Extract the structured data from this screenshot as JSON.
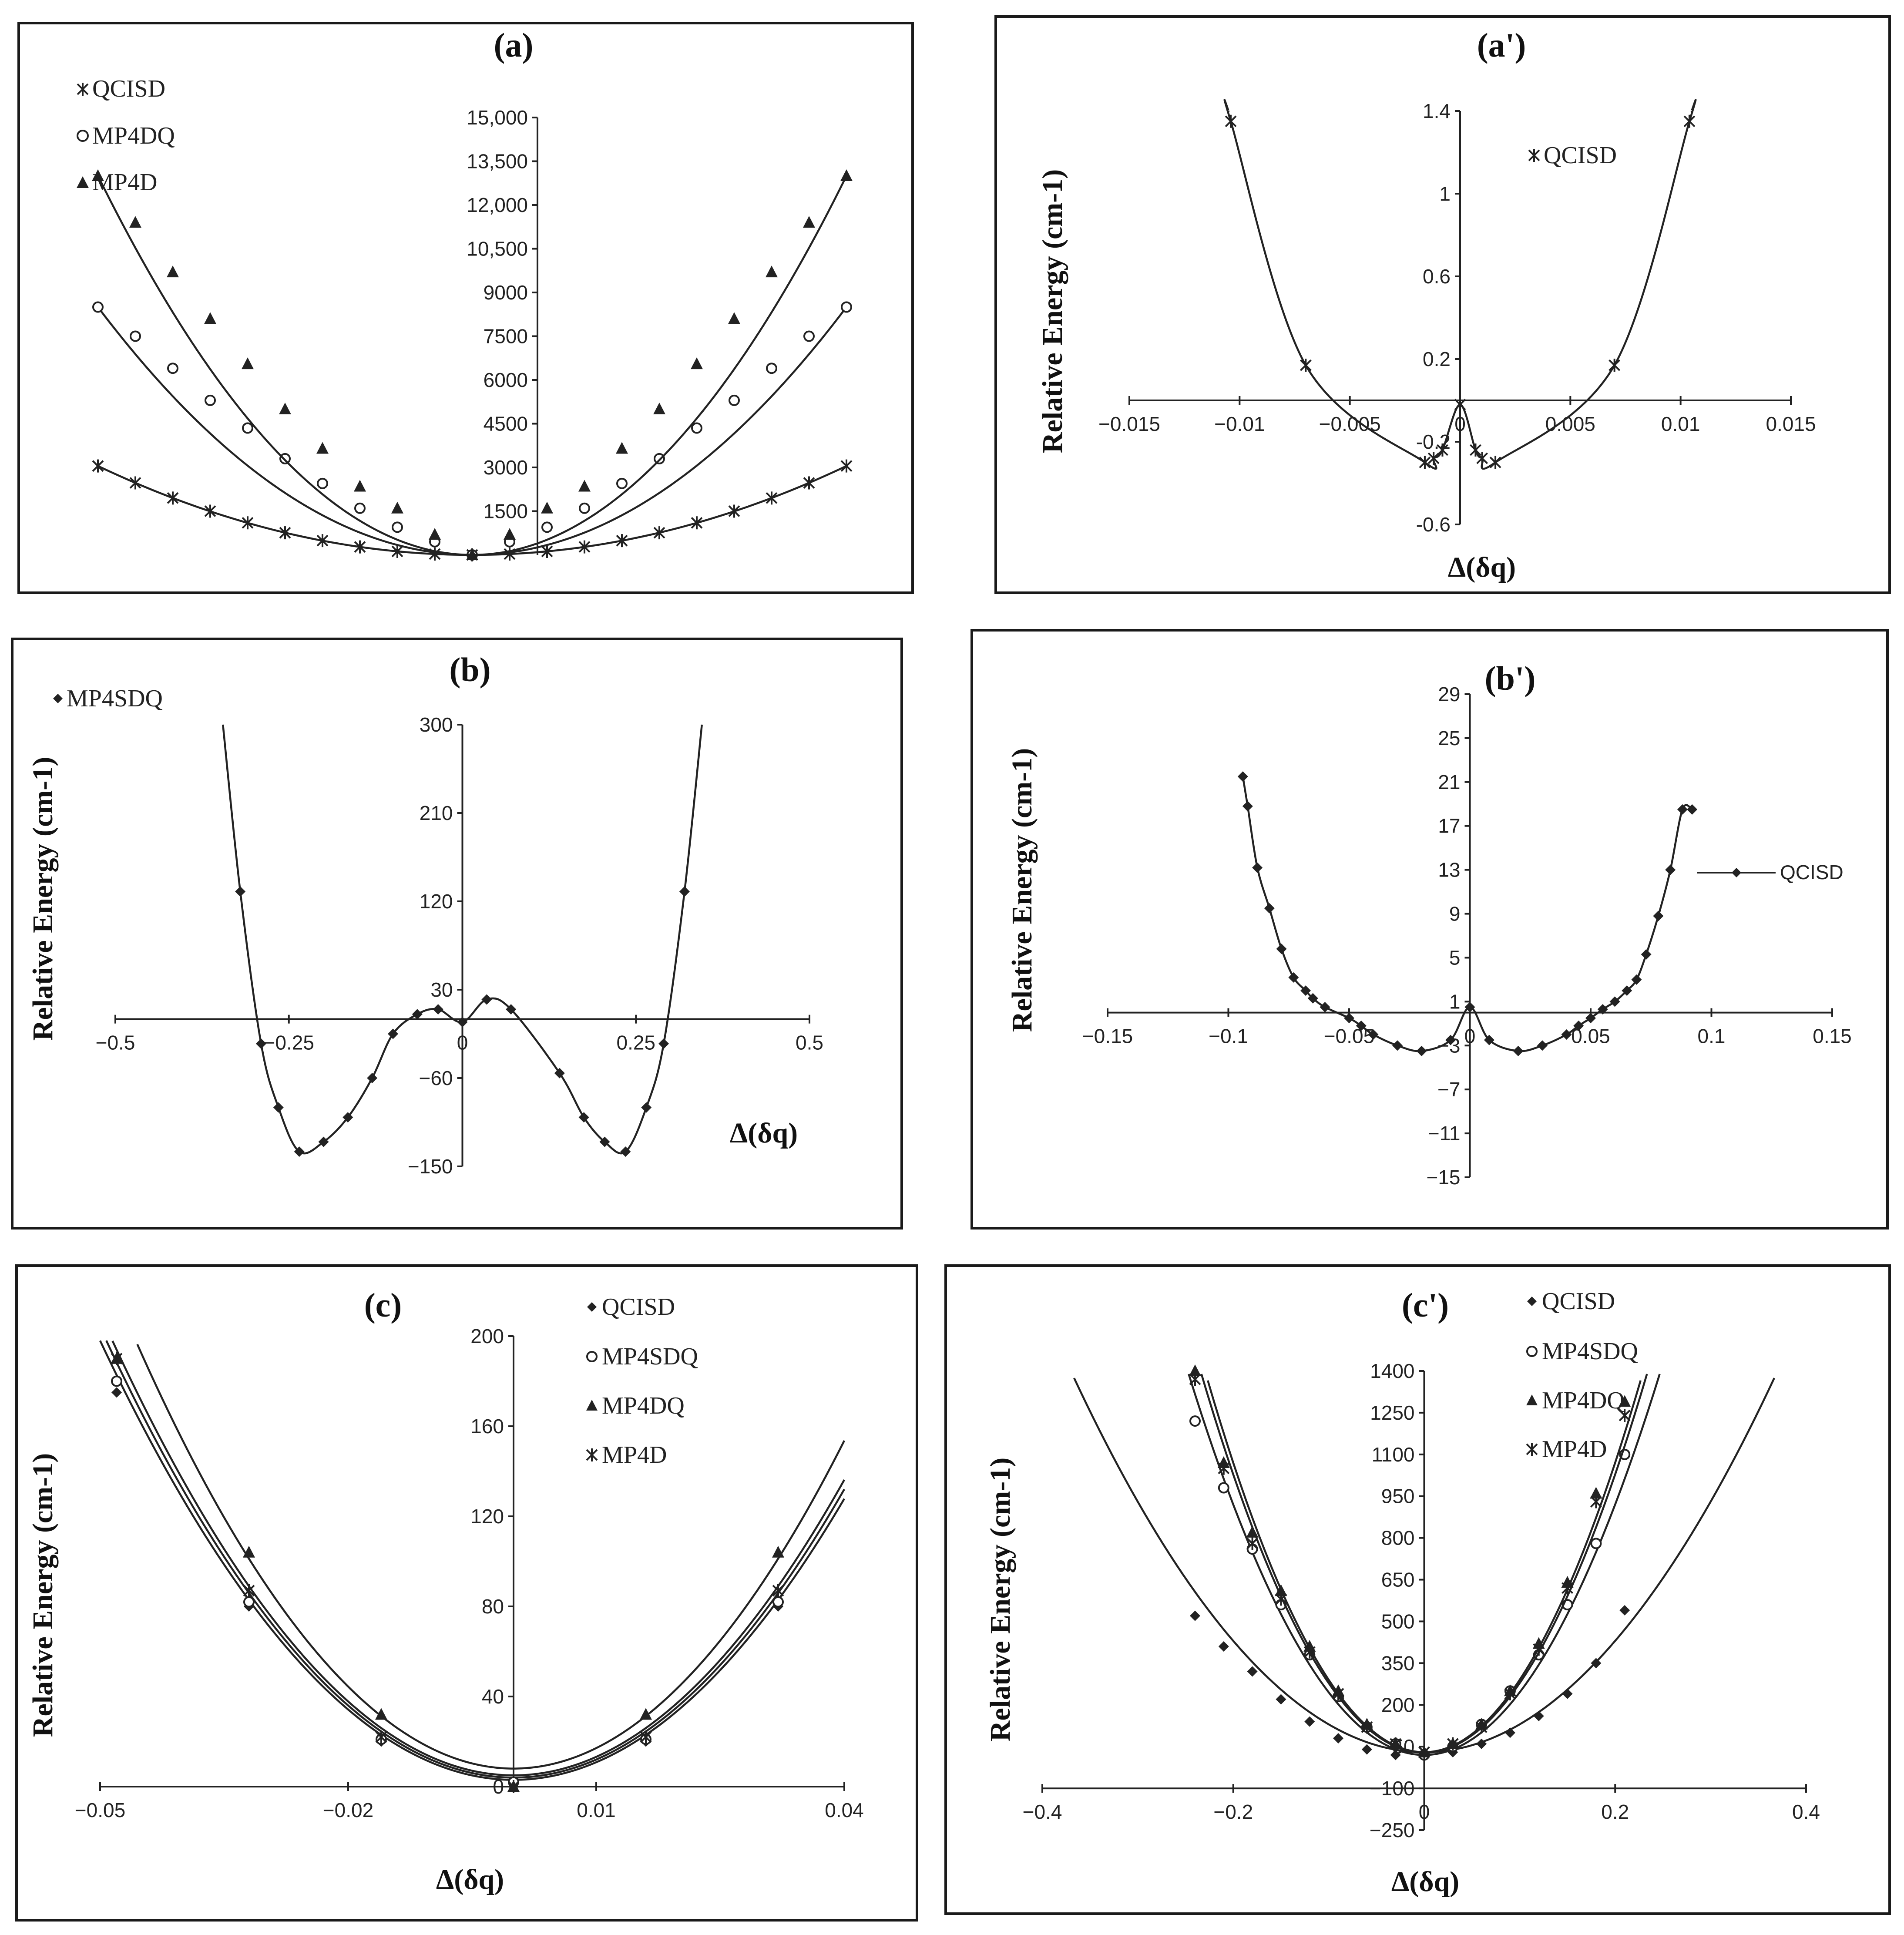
{
  "chart_data": [
    {
      "id": "a",
      "type": "line",
      "title": "(a)",
      "xlabel": "",
      "ylabel": "",
      "xlim": [
        -0.5,
        0.5
      ],
      "ylim": [
        0,
        15000
      ],
      "xticks": [],
      "yticks": [
        1500,
        3000,
        4500,
        6000,
        7500,
        9000,
        10500,
        12000,
        13500,
        15000
      ],
      "ytick_labels": [
        "1500",
        "3000",
        "4500",
        "6000",
        "7500",
        "9000",
        "10,500",
        "12,000",
        "13,500",
        "15,000"
      ],
      "series": [
        {
          "name": "QCISD",
          "marker": "star",
          "a": 12200,
          "b": 0,
          "x": [
            -0.5,
            -0.45,
            -0.4,
            -0.35,
            -0.3,
            -0.25,
            -0.2,
            -0.15,
            -0.1,
            -0.05,
            0,
            0.05,
            0.1,
            0.15,
            0.2,
            0.25,
            0.3,
            0.35,
            0.4,
            0.45,
            0.5
          ],
          "y": [
            3050,
            2470,
            1950,
            1500,
            1100,
            760,
            490,
            275,
            120,
            30,
            0,
            30,
            120,
            275,
            490,
            760,
            1100,
            1500,
            1950,
            2470,
            3050
          ]
        },
        {
          "name": "MP4DQ",
          "marker": "circle",
          "a": 34000,
          "b": 0,
          "x": [
            -0.5,
            -0.45,
            -0.4,
            -0.35,
            -0.3,
            -0.25,
            -0.2,
            -0.15,
            -0.1,
            -0.05,
            0,
            0.05,
            0.1,
            0.15,
            0.2,
            0.25,
            0.3,
            0.35,
            0.4,
            0.45,
            0.5
          ],
          "y": [
            8500,
            7500,
            6400,
            5300,
            4350,
            3300,
            2450,
            1600,
            950,
            450,
            0,
            450,
            950,
            1600,
            2450,
            3300,
            4350,
            5300,
            6400,
            7500,
            8500
          ]
        },
        {
          "name": "MP4D",
          "marker": "triangle",
          "a": 52000,
          "b": 0,
          "x": [
            -0.5,
            -0.45,
            -0.4,
            -0.35,
            -0.3,
            -0.25,
            -0.2,
            -0.15,
            -0.1,
            -0.05,
            0,
            0.05,
            0.1,
            0.15,
            0.2,
            0.25,
            0.3,
            0.35,
            0.4,
            0.45,
            0.5
          ],
          "y": [
            13000,
            11400,
            9700,
            8100,
            6550,
            5000,
            3650,
            2350,
            1600,
            700,
            0,
            700,
            1600,
            2350,
            3650,
            5000,
            6550,
            8100,
            9700,
            11400,
            13000
          ]
        }
      ]
    },
    {
      "id": "a_prime",
      "type": "line",
      "title": "(a')",
      "xlabel": "Δ(δq)",
      "ylabel": "Relative Energy (cm-1)",
      "xlim": [
        -0.015,
        0.015
      ],
      "ylim": [
        -0.6,
        1.4
      ],
      "xticks": [
        -0.015,
        -0.01,
        -0.005,
        0,
        0.005,
        0.01,
        0.015
      ],
      "xtick_labels": [
        "−0.015",
        "−0.01",
        "−0.005",
        "0",
        "0.005",
        "0.01",
        "0.015"
      ],
      "yticks": [
        -0.6,
        -0.2,
        0.2,
        0.6,
        1,
        1.4
      ],
      "ytick_labels": [
        "-0.6",
        "-0.2",
        "0.2",
        "0.6",
        "1",
        "1.4"
      ],
      "series": [
        {
          "name": "QCISD",
          "marker": "star",
          "curve": "wshape",
          "xrange": [
            -0.0105,
            0.0105
          ],
          "x": [
            -0.0104,
            -0.007,
            -0.0016,
            -0.0012,
            -0.0008,
            0,
            0.0007,
            0.001,
            0.0016,
            0.007,
            0.0104
          ],
          "y": [
            1.35,
            0.17,
            -0.3,
            -0.28,
            -0.24,
            -0.02,
            -0.24,
            -0.28,
            -0.3,
            0.17,
            1.35
          ]
        }
      ]
    },
    {
      "id": "b",
      "type": "line",
      "title": "(b)",
      "xlabel": "Δ(δq)",
      "ylabel": "Relative Energy (cm-1)",
      "xlim": [
        -0.5,
        0.5
      ],
      "ylim": [
        -150,
        300
      ],
      "xticks": [
        -0.5,
        -0.25,
        0,
        0.25,
        0.5
      ],
      "xtick_labels": [
        "−0.5",
        "−0.25",
        "0",
        "0.25",
        "0.5"
      ],
      "yticks": [
        -150,
        -60,
        30,
        120,
        210,
        300
      ],
      "ytick_labels": [
        "−150",
        "−60",
        "30",
        "120",
        "210",
        "300"
      ],
      "series": [
        {
          "name": "MP4SDQ",
          "marker": "diamond",
          "curve": "wshape",
          "xrange": [
            -0.345,
            0.345
          ],
          "x": [
            -0.32,
            -0.29,
            -0.265,
            -0.235,
            -0.2,
            -0.165,
            -0.13,
            -0.1,
            -0.065,
            -0.035,
            0,
            0.035,
            0.07,
            0.14,
            0.175,
            0.205,
            0.235,
            0.265,
            0.29,
            0.32
          ],
          "y": [
            130,
            -25,
            -90,
            -135,
            -125,
            -100,
            -60,
            -15,
            5,
            10,
            -3,
            20,
            10,
            -55,
            -100,
            -125,
            -135,
            -90,
            -25,
            130
          ]
        }
      ]
    },
    {
      "id": "b_prime",
      "type": "line",
      "title": "(b')",
      "xlabel": "",
      "ylabel": "Relative Energy (cm-1)",
      "xlim": [
        -0.15,
        0.15
      ],
      "ylim": [
        -15,
        29
      ],
      "xticks": [
        -0.15,
        -0.1,
        -0.05,
        0,
        0.05,
        0.1,
        0.15
      ],
      "xtick_labels": [
        "−0.15",
        "−0.1",
        "−0.05",
        "0",
        "0.05",
        "0.1",
        "0.15"
      ],
      "yticks": [
        -15,
        -11,
        -7,
        -3,
        1,
        5,
        9,
        13,
        17,
        21,
        25,
        29
      ],
      "ytick_labels": [
        "−15",
        "−11",
        "−7",
        "−3",
        "1",
        "5",
        "9",
        "13",
        "17",
        "21",
        "25",
        "29"
      ],
      "series": [
        {
          "name": "QCISD",
          "marker": "diamond",
          "curve": "connected",
          "x": [
            -0.094,
            -0.092,
            -0.088,
            -0.083,
            -0.078,
            -0.073,
            -0.068,
            -0.065,
            -0.06,
            -0.05,
            -0.045,
            -0.04,
            -0.03,
            -0.02,
            -0.008,
            0,
            0.008,
            0.02,
            0.03,
            0.04,
            0.045,
            0.05,
            0.055,
            0.06,
            0.065,
            0.069,
            0.073,
            0.078,
            0.083,
            0.088,
            0.092
          ],
          "y": [
            21.5,
            18.8,
            13.2,
            9.5,
            5.8,
            3.2,
            2.0,
            1.3,
            0.5,
            -0.5,
            -1.2,
            -2.0,
            -3.0,
            -3.5,
            -2.5,
            0.5,
            -2.5,
            -3.5,
            -3.0,
            -2.0,
            -1.2,
            -0.5,
            0.3,
            1.0,
            2.0,
            3.0,
            5.3,
            8.8,
            13.0,
            18.5,
            18.5
          ]
        }
      ]
    },
    {
      "id": "c",
      "type": "line",
      "title": "(c)",
      "xlabel": "Δ(δq)",
      "ylabel": "Relative Energy (cm-1)",
      "xlim": [
        -0.05,
        0.04
      ],
      "ylim": [
        0,
        200
      ],
      "xticks": [
        -0.05,
        -0.02,
        0.01,
        0.04
      ],
      "xtick_labels": [
        "−0.05",
        "−0.02",
        "0.01",
        "0.04"
      ],
      "yticks": [
        0,
        40,
        80,
        120,
        160,
        200
      ],
      "ytick_labels": [
        "0",
        "40",
        "80",
        "120",
        "160",
        "200"
      ],
      "series": [
        {
          "name": "QCISD",
          "marker": "diamond",
          "a": 78000,
          "b": 3,
          "x": [
            -0.048,
            -0.032,
            -0.016,
            0,
            0.016,
            0.032
          ],
          "y": [
            175,
            80,
            20,
            0,
            20,
            80
          ]
        },
        {
          "name": "MP4SDQ",
          "marker": "circle",
          "a": 80000,
          "b": 4,
          "x": [
            -0.048,
            -0.032,
            -0.016,
            0,
            0.016,
            0.032
          ],
          "y": [
            180,
            82,
            21,
            2,
            21,
            82
          ]
        },
        {
          "name": "MP4DQ",
          "marker": "triangle",
          "a": 91000,
          "b": 8,
          "x": [
            -0.048,
            -0.032,
            -0.016,
            0,
            0.016,
            0.032
          ],
          "y": [
            190,
            104,
            32,
            0,
            32,
            104
          ]
        },
        {
          "name": "MP4D",
          "marker": "star",
          "a": 82000,
          "b": 5,
          "x": [
            -0.048,
            -0.032,
            -0.016,
            0,
            0.016,
            0.032
          ],
          "y": [
            190,
            87,
            22,
            0,
            22,
            87
          ]
        }
      ]
    },
    {
      "id": "c_prime",
      "type": "line",
      "title": "(c')",
      "xlabel": "Δ(δq)",
      "ylabel": "Relative Energy (cm-1)",
      "xlim": [
        -0.4,
        0.4
      ],
      "ylim": [
        -250,
        1400
      ],
      "xticks": [
        -0.4,
        -0.2,
        0,
        0.2,
        0.4
      ],
      "xtick_labels": [
        "−0.4",
        "−0.2",
        "0",
        "0.2",
        "0.4"
      ],
      "yticks": [
        -250,
        -100,
        50,
        200,
        350,
        500,
        650,
        800,
        950,
        1100,
        1250,
        1400
      ],
      "ytick_labels": [
        "−250",
        "−100",
        "50",
        "200",
        "350",
        "500",
        "650",
        "800",
        "950",
        "1100",
        "1250",
        "1400"
      ],
      "series": [
        {
          "name": "QCISD",
          "marker": "diamond",
          "a": 10000,
          "b": 30,
          "x": [
            -0.24,
            -0.21,
            -0.18,
            -0.15,
            -0.12,
            -0.09,
            -0.06,
            -0.03,
            0,
            0.03,
            0.06,
            0.09,
            0.12,
            0.15,
            0.18,
            0.21
          ],
          "y": [
            520,
            410,
            320,
            220,
            140,
            80,
            40,
            20,
            20,
            30,
            60,
            100,
            160,
            240,
            350,
            540
          ]
        },
        {
          "name": "MP4SDQ",
          "marker": "circle",
          "a": 22500,
          "b": 20,
          "x": [
            -0.24,
            -0.21,
            -0.18,
            -0.15,
            -0.12,
            -0.09,
            -0.06,
            -0.03,
            0,
            0.03,
            0.06,
            0.09,
            0.12,
            0.15,
            0.18,
            0.21
          ],
          "y": [
            1220,
            980,
            760,
            560,
            380,
            230,
            120,
            60,
            20,
            50,
            130,
            250,
            380,
            560,
            780,
            1100
          ]
        },
        {
          "name": "MP4DQ",
          "marker": "triangle",
          "a": 26000,
          "b": 30,
          "x": [
            -0.24,
            -0.21,
            -0.18,
            -0.15,
            -0.12,
            -0.09,
            -0.06,
            -0.03,
            0,
            0.03,
            0.06,
            0.09,
            0.12,
            0.15,
            0.18,
            0.21
          ],
          "y": [
            1450,
            1070,
            820,
            610,
            410,
            250,
            130,
            60,
            30,
            60,
            130,
            250,
            420,
            640,
            960,
            1290
          ]
        },
        {
          "name": "MP4D",
          "marker": "star",
          "a": 25000,
          "b": 28,
          "x": [
            -0.24,
            -0.21,
            -0.18,
            -0.15,
            -0.12,
            -0.09,
            -0.06,
            -0.03,
            0,
            0.03,
            0.06,
            0.09,
            0.12,
            0.15,
            0.18,
            0.21
          ],
          "y": [
            1370,
            1050,
            780,
            580,
            390,
            240,
            120,
            60,
            30,
            60,
            120,
            240,
            400,
            620,
            930,
            1240
          ]
        }
      ]
    }
  ]
}
